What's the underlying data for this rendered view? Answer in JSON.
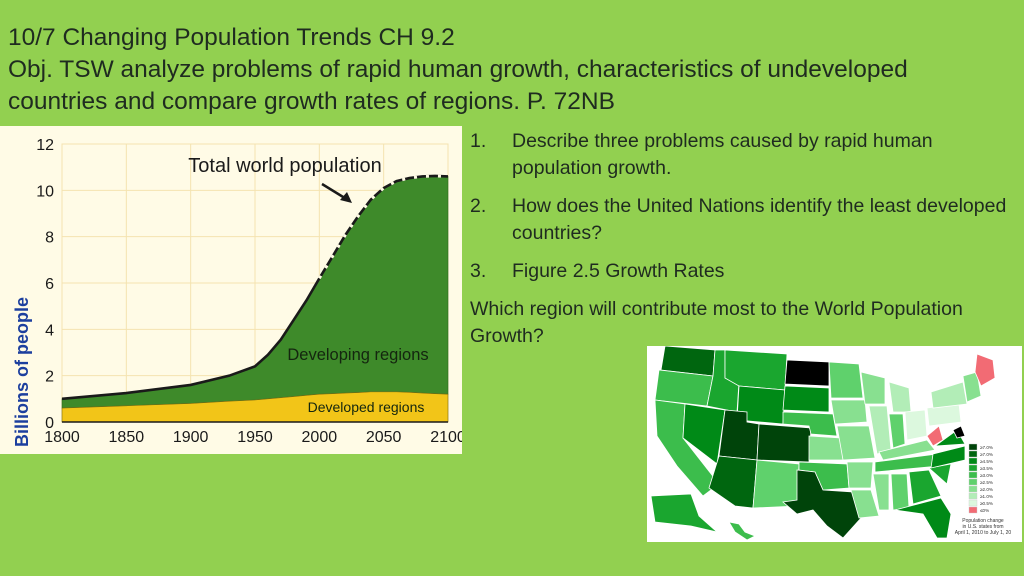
{
  "header": {
    "line1": "10/7 Changing Population Trends CH 9.2",
    "line2": "Obj. TSW analyze problems of rapid human growth, characteristics of undeveloped",
    "line3": "countries and compare growth rates of regions. P. 72NB"
  },
  "questions": [
    {
      "num": "1.",
      "text": "Describe three problems caused by rapid human population growth."
    },
    {
      "num": "2.",
      "text": "How  does the United Nations identify the least developed countries?"
    },
    {
      "num": "3.",
      "text": "Figure 2.5 Growth Rates"
    }
  ],
  "prompt": "Which region will contribute most to the World Population Growth?",
  "chart_data": {
    "type": "area",
    "title": "Total world population",
    "ylabel": "Billions of people",
    "xlabel": "",
    "xlim": [
      1800,
      2100
    ],
    "ylim": [
      0,
      12
    ],
    "x_ticks": [
      1800,
      1850,
      1900,
      1950,
      2000,
      2050,
      2100
    ],
    "y_ticks": [
      0,
      2,
      4,
      6,
      8,
      10,
      12
    ],
    "x": [
      1800,
      1850,
      1900,
      1930,
      1950,
      1960,
      1970,
      1980,
      1990,
      2000,
      2010,
      2020,
      2030,
      2040,
      2050,
      2060,
      2070,
      2080,
      2090,
      2100
    ],
    "series": [
      {
        "name": "Developed regions",
        "color": "#f2c518",
        "values": [
          0.6,
          0.7,
          0.8,
          0.9,
          0.95,
          1.0,
          1.05,
          1.1,
          1.15,
          1.2,
          1.22,
          1.25,
          1.27,
          1.3,
          1.3,
          1.3,
          1.28,
          1.25,
          1.22,
          1.2
        ]
      },
      {
        "name": "Developing regions",
        "color": "#3e8a2a",
        "values": [
          0.4,
          0.55,
          0.8,
          1.1,
          1.45,
          1.9,
          2.5,
          3.3,
          4.1,
          5.0,
          5.9,
          6.8,
          7.6,
          8.3,
          8.8,
          9.1,
          9.25,
          9.35,
          9.4,
          9.4
        ]
      }
    ],
    "annotations": [
      "Total world population",
      "Developing regions",
      "Developed regions"
    ]
  },
  "map": {
    "legend": [
      "≥7.0%",
      "≥7.0%",
      "≥4.5%",
      "≥3.5%",
      "≥3.0%",
      "≥2.5%",
      "≥2.0%",
      "≥1.0%",
      "≥0.5%",
      "≤0%"
    ],
    "legend_colors": [
      "#00440a",
      "#00660f",
      "#008a17",
      "#1aa62f",
      "#3cbd4c",
      "#5fd16c",
      "#88e090",
      "#b2edb7",
      "#dcf8de",
      "#f26b74"
    ],
    "caption": [
      "Population change",
      "in U.S. states from",
      "April 1, 2010 to July 1, 20"
    ]
  }
}
